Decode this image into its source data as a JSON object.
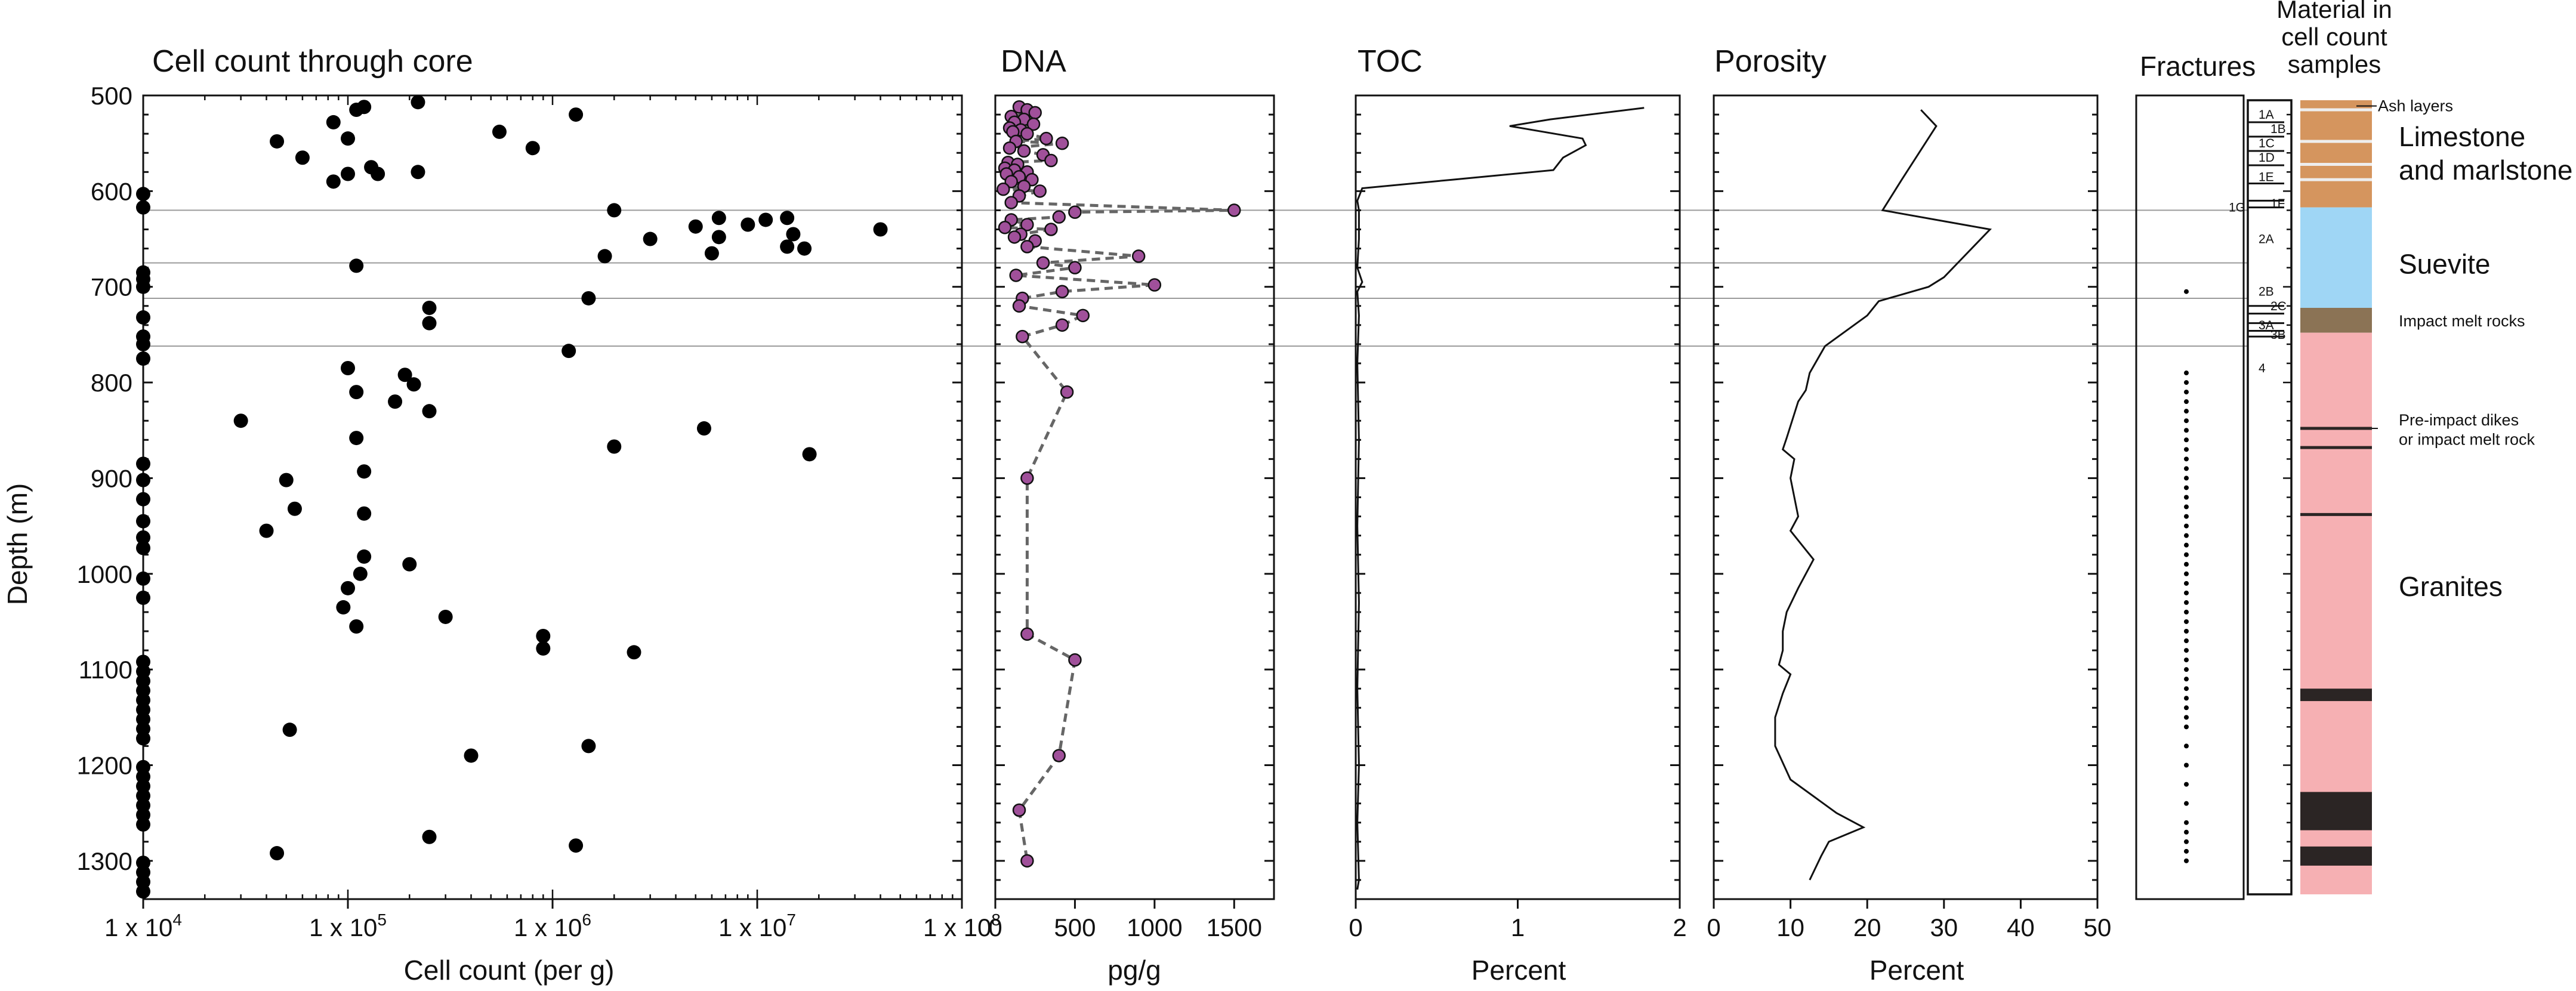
{
  "chart_data": [
    {
      "type": "scatter",
      "title": "Cell count through core",
      "xlabel": "Cell count (per g)",
      "ylabel": "Depth (m)",
      "xscale": "log",
      "xlim": [
        10000,
        100000000
      ],
      "ylim": [
        1340,
        500
      ],
      "xticks": [
        "1 x 10",
        "1 x 10",
        "1 x 10",
        "1 x 10"
      ],
      "xtick_exps": [
        "4",
        "5",
        "6",
        "7"
      ],
      "xticks_last": "1 x 10",
      "xticks_last_exp": "8",
      "yticks": [
        "500",
        "600",
        "700",
        "800",
        "900",
        "1000",
        "1100",
        "1200",
        "1300"
      ],
      "points": [
        [
          120000,
          512
        ],
        [
          220000,
          507
        ],
        [
          1300000,
          520
        ],
        [
          45000,
          548
        ],
        [
          60000,
          565
        ],
        [
          85000,
          528
        ],
        [
          100000,
          545
        ],
        [
          110000,
          515
        ],
        [
          130000,
          575
        ],
        [
          140000,
          582
        ],
        [
          220000,
          580
        ],
        [
          550000,
          538
        ],
        [
          800000,
          555
        ],
        [
          85000,
          590
        ],
        [
          100000,
          582
        ],
        [
          10000,
          603
        ],
        [
          10000,
          617
        ],
        [
          2000000,
          620
        ],
        [
          5000000,
          637
        ],
        [
          6500000,
          628
        ],
        [
          6500000,
          648
        ],
        [
          9000000,
          635
        ],
        [
          11000000,
          630
        ],
        [
          14000000,
          628
        ],
        [
          15000000,
          645
        ],
        [
          17000000,
          660
        ],
        [
          14000000,
          658
        ],
        [
          40000000,
          640
        ],
        [
          3000000,
          650
        ],
        [
          1800000,
          668
        ],
        [
          6000000,
          665
        ],
        [
          110000,
          678
        ],
        [
          10000,
          685
        ],
        [
          10000,
          692
        ],
        [
          10000,
          700
        ],
        [
          1500000,
          712
        ],
        [
          250000,
          722
        ],
        [
          250000,
          738
        ],
        [
          10000,
          732
        ],
        [
          10000,
          752
        ],
        [
          10000,
          760
        ],
        [
          10000,
          775
        ],
        [
          1200000,
          767
        ],
        [
          100000,
          785
        ],
        [
          190000,
          792
        ],
        [
          210000,
          802
        ],
        [
          110000,
          810
        ],
        [
          170000,
          820
        ],
        [
          250000,
          830
        ],
        [
          30000,
          840
        ],
        [
          110000,
          858
        ],
        [
          5500000,
          848
        ],
        [
          2000000,
          867
        ],
        [
          18000000,
          875
        ],
        [
          10000,
          885
        ],
        [
          10000,
          902
        ],
        [
          10000,
          922
        ],
        [
          10000,
          945
        ],
        [
          10000,
          962
        ],
        [
          10000,
          973
        ],
        [
          50000,
          902
        ],
        [
          120000,
          893
        ],
        [
          55000,
          932
        ],
        [
          120000,
          937
        ],
        [
          40000,
          955
        ],
        [
          120000,
          982
        ],
        [
          200000,
          990
        ],
        [
          115000,
          1000
        ],
        [
          10000,
          1005
        ],
        [
          10000,
          1025
        ],
        [
          100000,
          1015
        ],
        [
          95000,
          1035
        ],
        [
          110000,
          1055
        ],
        [
          300000,
          1045
        ],
        [
          900000,
          1065
        ],
        [
          900000,
          1078
        ],
        [
          2500000,
          1082
        ],
        [
          10000,
          1092
        ],
        [
          10000,
          1102
        ],
        [
          10000,
          1112
        ],
        [
          10000,
          1122
        ],
        [
          10000,
          1132
        ],
        [
          10000,
          1142
        ],
        [
          10000,
          1152
        ],
        [
          10000,
          1162
        ],
        [
          10000,
          1172
        ],
        [
          52000,
          1163
        ],
        [
          1500000,
          1180
        ],
        [
          400000,
          1190
        ],
        [
          10000,
          1202
        ],
        [
          10000,
          1212
        ],
        [
          10000,
          1222
        ],
        [
          10000,
          1232
        ],
        [
          10000,
          1242
        ],
        [
          10000,
          1252
        ],
        [
          10000,
          1262
        ],
        [
          250000,
          1275
        ],
        [
          1300000,
          1284
        ],
        [
          45000,
          1292
        ],
        [
          10000,
          1302
        ],
        [
          10000,
          1312
        ],
        [
          10000,
          1322
        ],
        [
          10000,
          1332
        ]
      ]
    },
    {
      "type": "line",
      "title": "DNA",
      "xlabel": "pg/g",
      "xlim": [
        0,
        1750
      ],
      "xticks": [
        "0",
        "500",
        "1000",
        "1500"
      ],
      "ylim": [
        1340,
        500
      ],
      "series": [
        {
          "name": "DNA",
          "style": "dashed-markers",
          "points": [
            [
              150,
              512
            ],
            [
              200,
              515
            ],
            [
              250,
              518
            ],
            [
              100,
              522
            ],
            [
              180,
              525
            ],
            [
              120,
              528
            ],
            [
              240,
              530
            ],
            [
              90,
              534
            ],
            [
              160,
              536
            ],
            [
              110,
              538
            ],
            [
              200,
              540
            ],
            [
              320,
              545
            ],
            [
              130,
              548
            ],
            [
              420,
              550
            ],
            [
              90,
              555
            ],
            [
              180,
              558
            ],
            [
              300,
              562
            ],
            [
              350,
              568
            ],
            [
              80,
              570
            ],
            [
              140,
              572
            ],
            [
              60,
              576
            ],
            [
              120,
              578
            ],
            [
              200,
              580
            ],
            [
              70,
              582
            ],
            [
              150,
              585
            ],
            [
              230,
              588
            ],
            [
              100,
              590
            ],
            [
              180,
              595
            ],
            [
              50,
              598
            ],
            [
              280,
              600
            ],
            [
              150,
              605
            ],
            [
              100,
              612
            ],
            [
              1500,
              620
            ],
            [
              500,
              622
            ],
            [
              400,
              627
            ],
            [
              100,
              630
            ],
            [
              200,
              635
            ],
            [
              60,
              638
            ],
            [
              350,
              640
            ],
            [
              160,
              645
            ],
            [
              120,
              648
            ],
            [
              250,
              652
            ],
            [
              200,
              658
            ],
            [
              900,
              668
            ],
            [
              300,
              675
            ],
            [
              500,
              680
            ],
            [
              130,
              688
            ],
            [
              1000,
              698
            ],
            [
              420,
              705
            ],
            [
              170,
              712
            ],
            [
              150,
              720
            ],
            [
              550,
              730
            ],
            [
              420,
              740
            ],
            [
              170,
              752
            ],
            [
              450,
              810
            ],
            [
              200,
              900
            ],
            [
              200,
              1063
            ],
            [
              500,
              1090
            ],
            [
              400,
              1190
            ],
            [
              150,
              1247
            ],
            [
              200,
              1300
            ]
          ]
        }
      ]
    },
    {
      "type": "line",
      "title": "TOC",
      "xlabel": "Percent",
      "xlim": [
        0,
        2
      ],
      "xticks": [
        "0",
        "1",
        "2"
      ],
      "ylim": [
        1340,
        500
      ],
      "series": [
        {
          "name": "TOC",
          "points": [
            [
              1.78,
              513
            ],
            [
              1.2,
              525
            ],
            [
              0.95,
              532
            ],
            [
              1.4,
              545
            ],
            [
              1.42,
              552
            ],
            [
              1.28,
              565
            ],
            [
              1.22,
              578
            ],
            [
              0.6,
              588
            ],
            [
              0.04,
              597
            ],
            [
              0.01,
              610
            ],
            [
              0.02,
              620
            ],
            [
              0.02,
              650
            ],
            [
              0.01,
              680
            ],
            [
              0.04,
              695
            ],
            [
              0.01,
              705
            ],
            [
              0.02,
              730
            ],
            [
              0.01,
              780
            ],
            [
              0.02,
              860
            ],
            [
              0.01,
              950
            ],
            [
              0.02,
              1030
            ],
            [
              0.01,
              1120
            ],
            [
              0.02,
              1200
            ],
            [
              0.01,
              1260
            ],
            [
              0.02,
              1320
            ],
            [
              0.01,
              1330
            ]
          ]
        }
      ]
    },
    {
      "type": "line",
      "title": "Porosity",
      "xlabel": "Percent",
      "xlim": [
        0,
        50
      ],
      "xticks": [
        "0",
        "10",
        "20",
        "30",
        "40",
        "50"
      ],
      "ylim": [
        1340,
        500
      ],
      "series": [
        {
          "name": "Porosity",
          "points": [
            [
              27,
              515
            ],
            [
              29,
              532
            ],
            [
              24.5,
              588
            ],
            [
              22,
              620
            ],
            [
              36,
              640
            ],
            [
              30,
              690
            ],
            [
              28,
              700
            ],
            [
              21.5,
              715
            ],
            [
              20,
              730
            ],
            [
              14.5,
              762
            ],
            [
              12.5,
              790
            ],
            [
              12,
              808
            ],
            [
              11,
              820
            ],
            [
              9.5,
              858
            ],
            [
              9,
              870
            ],
            [
              10.5,
              880
            ],
            [
              10,
              900
            ],
            [
              11,
              940
            ],
            [
              10,
              955
            ],
            [
              12,
              975
            ],
            [
              13,
              985
            ],
            [
              11,
              1015
            ],
            [
              9.5,
              1040
            ],
            [
              9,
              1060
            ],
            [
              9,
              1080
            ],
            [
              8.5,
              1095
            ],
            [
              10,
              1105
            ],
            [
              9,
              1125
            ],
            [
              8,
              1150
            ],
            [
              8,
              1180
            ],
            [
              10,
              1215
            ],
            [
              16,
              1250
            ],
            [
              19.5,
              1265
            ],
            [
              15,
              1280
            ],
            [
              14,
              1295
            ],
            [
              12.5,
              1320
            ]
          ]
        }
      ]
    }
  ],
  "fractures": {
    "title": "Fractures",
    "depths": [
      705,
      790,
      800,
      810,
      820,
      830,
      840,
      850,
      860,
      870,
      880,
      890,
      900,
      910,
      920,
      930,
      940,
      950,
      960,
      970,
      980,
      990,
      1000,
      1010,
      1020,
      1030,
      1040,
      1050,
      1060,
      1070,
      1080,
      1090,
      1100,
      1110,
      1120,
      1130,
      1140,
      1150,
      1160,
      1180,
      1200,
      1220,
      1240,
      1260,
      1270,
      1280,
      1290,
      1300
    ]
  },
  "units": {
    "labels": [
      "1A",
      "1B",
      "1C",
      "1D",
      "1E",
      "1F",
      "1G",
      "2A",
      "2B",
      "2C",
      "3A",
      "3B",
      "4"
    ],
    "depths": [
      520,
      535,
      550,
      565,
      585,
      613,
      617,
      650,
      705,
      720,
      740,
      750,
      785
    ],
    "boundaries": [
      528,
      543,
      558,
      573,
      592,
      610,
      617,
      720,
      728,
      738,
      746,
      752
    ]
  },
  "lithology": {
    "title_lines": [
      "Material in",
      "cell count",
      "samples"
    ],
    "layers": [
      {
        "top": 505,
        "bottom": 617,
        "label": "Limestone and marlstone",
        "color": "#d5955e"
      },
      {
        "top": 617,
        "bottom": 722,
        "label": "Suevite",
        "color": "#9fd6f5"
      },
      {
        "top": 722,
        "bottom": 748,
        "label": "Impact melt rocks",
        "color": "#8b7355"
      },
      {
        "top": 748,
        "bottom": 1335,
        "label": "Granites",
        "color": "#f6b0b3"
      }
    ],
    "label_lines": {
      "ash": "Ash layers",
      "limestone": [
        "Limestone",
        "and marlstone"
      ],
      "suevite": "Suevite",
      "impact": "Impact melt rocks",
      "dikes": [
        "Pre-impact dikes",
        "or impact melt rock"
      ],
      "granites": "Granites"
    },
    "ash_layers": [
      515,
      548,
      572,
      588
    ],
    "thin_dikes": [
      848,
      868,
      938
    ],
    "dark_bands": [
      [
        1120,
        1133
      ],
      [
        1228,
        1268
      ],
      [
        1285,
        1305
      ]
    ],
    "dark_color": "#2b2524"
  },
  "reference_depths": [
    620,
    675,
    712,
    762
  ]
}
